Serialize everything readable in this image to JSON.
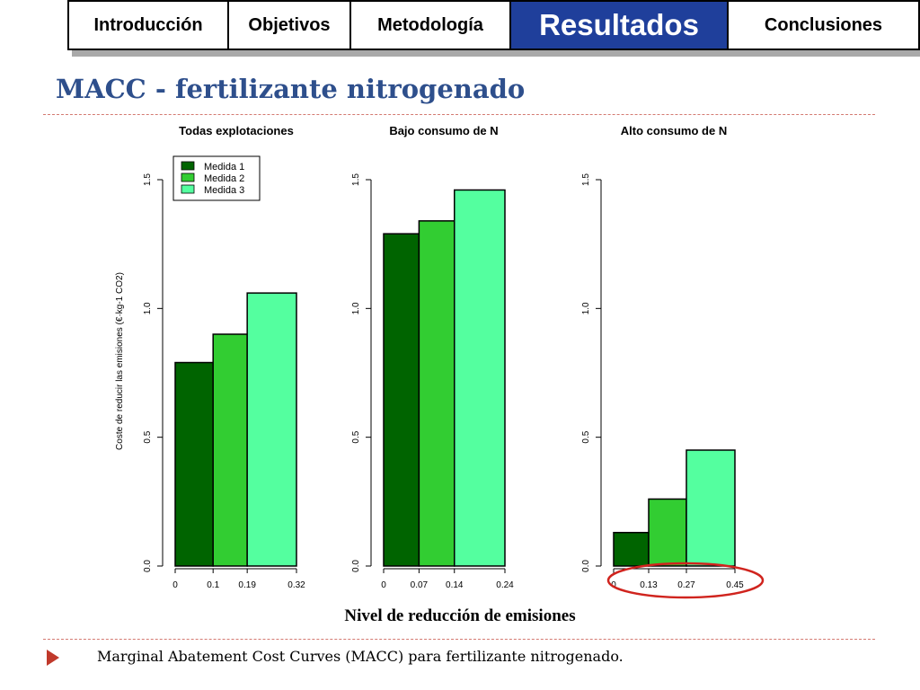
{
  "nav": {
    "tabs": [
      {
        "label": "Introducción",
        "active": false
      },
      {
        "label": "Objetivos",
        "active": false
      },
      {
        "label": "Metodología",
        "active": false
      },
      {
        "label": "Resultados",
        "active": true
      },
      {
        "label": "Conclusiones",
        "active": false
      }
    ],
    "active_color": "#1f3f9b"
  },
  "slide": {
    "title": "MACC - fertilizante nitrogenado",
    "xlabel": "Nivel de reducción de emisiones",
    "caption": "Marginal Abatement Cost Curves (MACC) para fertilizante nitrogenado."
  },
  "colors": {
    "title": "#2e4f8c",
    "bullet": "#c0392b",
    "highlight_circle": "#d0241e",
    "series": [
      "#006400",
      "#32cd32",
      "#54ff9f"
    ]
  },
  "chart_data": [
    {
      "type": "bar",
      "title": "Todas explotaciones",
      "ylabel": "Coste de reducir las emisiones (€·kg-1 CO2)",
      "ylim": [
        0,
        1.5
      ],
      "yticks": [
        "0.0",
        "0.5",
        "1.0",
        "1.5"
      ],
      "xticks": [
        "0",
        "0.1",
        "0.19",
        "0.32"
      ],
      "legend": {
        "position": "top-left",
        "entries": [
          "Medida 1",
          "Medida 2",
          "Medida 3"
        ]
      },
      "bars": [
        {
          "name": "Medida 1",
          "x_start": 0,
          "x_end": 0.1,
          "value": 0.79
        },
        {
          "name": "Medida 2",
          "x_start": 0.1,
          "x_end": 0.19,
          "value": 0.9
        },
        {
          "name": "Medida 3",
          "x_start": 0.19,
          "x_end": 0.32,
          "value": 1.06
        }
      ]
    },
    {
      "type": "bar",
      "title": "Bajo consumo de N",
      "ylim": [
        0,
        1.5
      ],
      "yticks": [
        "0.0",
        "0.5",
        "1.0",
        "1.5"
      ],
      "xticks": [
        "0",
        "0.07",
        "0.14",
        "0.24"
      ],
      "bars": [
        {
          "name": "Medida 1",
          "x_start": 0,
          "x_end": 0.07,
          "value": 1.29
        },
        {
          "name": "Medida 2",
          "x_start": 0.07,
          "x_end": 0.14,
          "value": 1.34
        },
        {
          "name": "Medida 3",
          "x_start": 0.14,
          "x_end": 0.24,
          "value": 1.46
        }
      ]
    },
    {
      "type": "bar",
      "title": "Alto consumo de N",
      "ylim": [
        0,
        1.5
      ],
      "yticks": [
        "0.0",
        "0.5",
        "1.0",
        "1.5"
      ],
      "xticks": [
        "0",
        "0.13",
        "0.27",
        "0.45"
      ],
      "highlighted_axis": true,
      "bars": [
        {
          "name": "Medida 1",
          "x_start": 0,
          "x_end": 0.13,
          "value": 0.13
        },
        {
          "name": "Medida 2",
          "x_start": 0.13,
          "x_end": 0.27,
          "value": 0.26
        },
        {
          "name": "Medida 3",
          "x_start": 0.27,
          "x_end": 0.45,
          "value": 0.45
        }
      ]
    }
  ]
}
